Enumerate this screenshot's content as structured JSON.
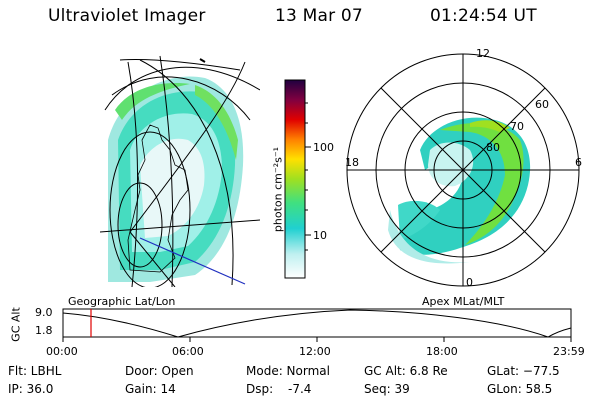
{
  "header": {
    "instrument": "Ultraviolet Imager",
    "date": "13 Mar 07",
    "time": "01:24:54 UT"
  },
  "colorbar": {
    "unit_label": "photon cm⁻²s⁻¹",
    "ticks": [
      {
        "value": 10,
        "label": "10"
      },
      {
        "value": 100,
        "label": "100"
      }
    ],
    "scale": "log",
    "colors": [
      "#ffffff",
      "#20d0d0",
      "#40e080",
      "#a0e020",
      "#ffe000",
      "#ff8000",
      "#e00000",
      "#800040",
      "#200040"
    ]
  },
  "polar_plot": {
    "mlt_labels": {
      "top": "12",
      "right": "6",
      "bottom": "0",
      "left": "18"
    },
    "lat_labels": [
      "60",
      "70",
      "80"
    ]
  },
  "left_map": {
    "caption": "Geographic Lat/Lon"
  },
  "right_map": {
    "caption": "Apex MLat/MLT"
  },
  "timeline": {
    "ylabel": "GC Alt",
    "y_ticks": [
      "9.0",
      "1.8"
    ],
    "x_ticks": [
      "00:00",
      "06:00",
      "12:00",
      "18:00",
      "23:59"
    ],
    "current_marker_hours": 1.415,
    "marker_color": "#e00000"
  },
  "info": {
    "flt": "Flt: LBHL",
    "ip": "IP: 36.0",
    "door": "Door: Open",
    "gain": "Gain: 14",
    "mode": "Mode: Normal",
    "dsp": "Dsp:",
    "dsp_value": "-7.4",
    "gcalt": "GC Alt: 6.8 Re",
    "seq": "Seq: 39",
    "glat": "GLat: −77.5",
    "glon": "GLon:  58.5"
  }
}
